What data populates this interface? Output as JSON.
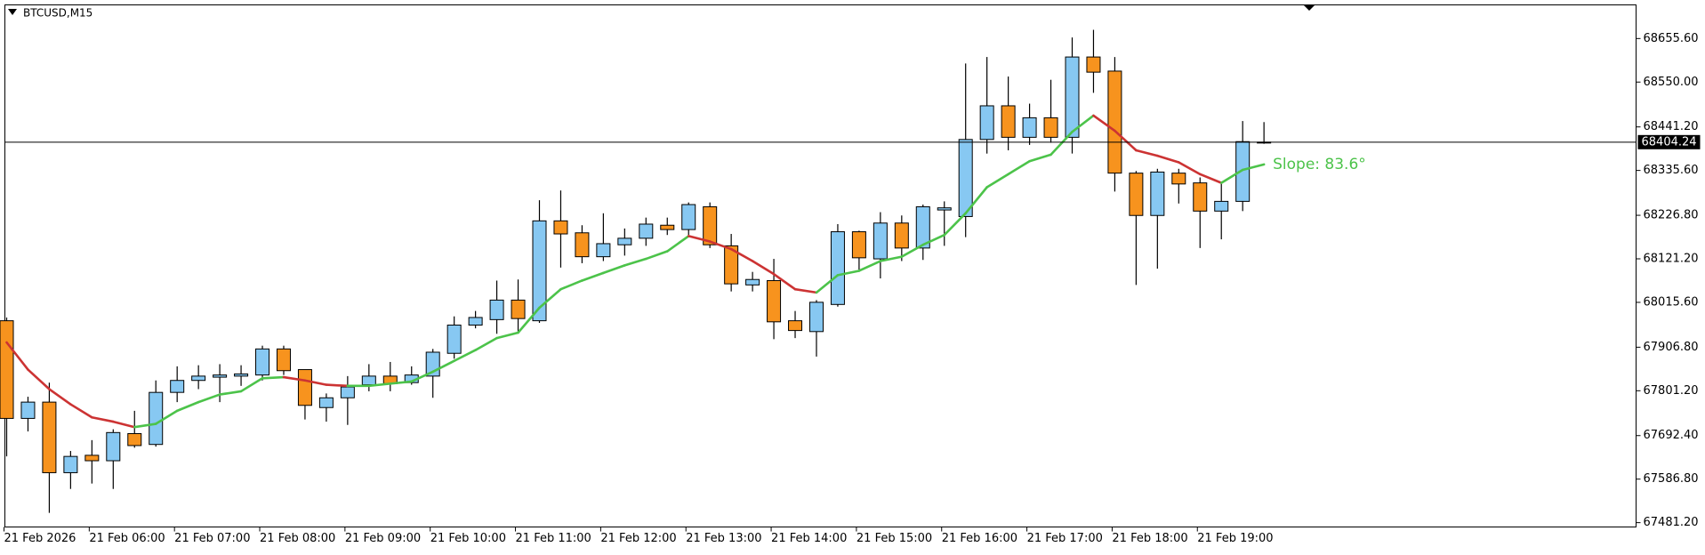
{
  "chart_data": {
    "type": "candlestick",
    "title": "BTCUSD,M15",
    "annotation": "Slope: 83.6°",
    "up_color": "#87c8f2",
    "down_color": "#f7931e",
    "categories": [
      "21 Feb 2026",
      null,
      null,
      null,
      "21 Feb 06:00",
      null,
      null,
      null,
      "21 Feb 07:00",
      null,
      null,
      null,
      "21 Feb 08:00",
      null,
      null,
      null,
      "21 Feb 09:00",
      null,
      null,
      null,
      "21 Feb 10:00",
      null,
      null,
      null,
      "21 Feb 11:00",
      null,
      null,
      null,
      "21 Feb 12:00",
      null,
      null,
      null,
      "21 Feb 13:00",
      null,
      null,
      null,
      "21 Feb 14:00",
      null,
      null,
      null,
      "21 Feb 15:00",
      null,
      null,
      null,
      "21 Feb 16:00",
      null,
      null,
      null,
      "21 Feb 17:00",
      null,
      null,
      null,
      "21 Feb 18:00",
      null,
      null,
      null,
      "21 Feb 19:00",
      null,
      null,
      null
    ],
    "open": [
      67971,
      67734.1,
      67773.6,
      67602.4,
      67644.6,
      67631.4,
      67697.2,
      67670.9,
      67797.2,
      67826.2,
      67834.1,
      67836.7,
      67839.4,
      67902.6,
      67852.5,
      67760.4,
      67784.1,
      67815.7,
      67836.7,
      67820.9,
      67836.7,
      67892,
      67960.5,
      67973.7,
      68021.1,
      67971,
      68213.3,
      68184.3,
      68126.3,
      68155.3,
      68171.1,
      68202.7,
      68192.2,
      68247.5,
      68152.7,
      68057.9,
      68068.4,
      67971,
      67944.7,
      68010.5,
      68186.9,
      68121.1,
      68208,
      68147.4,
      68239.7,
      68223.8,
      68410.7,
      68492.4,
      68416,
      68463.4,
      68416,
      68610.8,
      68576.6,
      68329.1,
      68226.4,
      68329.1,
      68305.4,
      68237,
      68260.6,
      68402.8
    ],
    "high": [
      67978.9,
      67786.7,
      67820.9,
      67655.1,
      67681.4,
      67707.7,
      67752.5,
      67826.2,
      67860.4,
      67863.1,
      67865.7,
      67863.1,
      67910.5,
      67910.5,
      67852.5,
      67794.6,
      67836.7,
      67865.7,
      67871,
      67860.4,
      67902.6,
      67981.6,
      67994.7,
      68068.4,
      68071.1,
      68263.3,
      68287,
      68202.7,
      68231.7,
      68194.8,
      68221.2,
      68221.2,
      68258,
      68258,
      68181.6,
      68089.5,
      68121.1,
      67994.7,
      68021.1,
      68205.4,
      68189.5,
      68234.4,
      68226.4,
      68252.8,
      68260.6,
      68595,
      68610.8,
      68563.4,
      68497.6,
      68555.5,
      68658.2,
      68676.7,
      68610.8,
      68334.4,
      68339.6,
      68339.6,
      68318.6,
      68308,
      68455.5,
      68452.9
    ],
    "low": [
      67641.9,
      67702.5,
      67505,
      67563,
      67576.1,
      67563,
      67663,
      67665.6,
      67773.6,
      67805.1,
      67773.6,
      67813,
      67826.2,
      67839.4,
      67731.5,
      67726.2,
      67718.3,
      67799.9,
      67799.9,
      67815.7,
      67784.1,
      67878.9,
      67952.6,
      67939.4,
      67942.1,
      67965.8,
      68100,
      68110.6,
      68115.8,
      68129,
      68152.7,
      68179,
      68179,
      68147.4,
      68042.1,
      68042.1,
      67926.3,
      67928.9,
      67884.1,
      68005.2,
      68094.8,
      68073.7,
      68115.8,
      68118.5,
      68152.7,
      68173.8,
      68376.5,
      68384.4,
      68397.6,
      68402.8,
      68376.5,
      68523.9,
      68284.3,
      68057.9,
      68097.4,
      68255.4,
      68147.4,
      68168.5,
      68237,
      68400.2
    ],
    "close": [
      67734.1,
      67773.6,
      67602.4,
      67641.9,
      67631.4,
      67699.8,
      67668.2,
      67797.2,
      67826.2,
      67836.7,
      67839.4,
      67842,
      67902.6,
      67849.9,
      67765.7,
      67784.1,
      67810.4,
      67836.7,
      67818.3,
      67839.4,
      67894.7,
      67960.5,
      67978.9,
      68021.1,
      67976.3,
      68213.3,
      68181.6,
      68126.3,
      68158,
      68171.1,
      68205.4,
      68192.2,
      68252.8,
      68155.3,
      68060.5,
      68071.1,
      67968.4,
      67947.3,
      68015.8,
      68186.9,
      68123.7,
      68208,
      68147.4,
      68247.5,
      68244.9,
      68410.7,
      68492.4,
      68416,
      68463.4,
      68416,
      68610.8,
      68574,
      68329.1,
      68226.4,
      68331.7,
      68302.8,
      68237,
      68260.6,
      68405.5,
      68404.24
    ],
    "ma": {
      "up_color": "#4cc34a",
      "down_color": "#cc3333",
      "values": [
        67918.4,
        67852.5,
        67805.1,
        67768.3,
        67736.7,
        67726.2,
        67713,
        67720.9,
        67752.5,
        67773.6,
        67792,
        67799.9,
        67831.5,
        67834.1,
        67826.2,
        67815.7,
        67813,
        67813,
        67818.3,
        67823.6,
        67847.3,
        67873.6,
        67899.9,
        67928.9,
        67942.1,
        68002.6,
        68047.4,
        68068.4,
        68086.9,
        68105.3,
        68121.1,
        68139.5,
        68176.4,
        68163.2,
        68144.8,
        68115.8,
        68084.2,
        68047.4,
        68039.5,
        68081.6,
        68092.1,
        68115.8,
        68126.3,
        68155.3,
        68179,
        68231.7,
        68294.9,
        68326.5,
        68358.1,
        68373.9,
        68429.2,
        68468.7,
        68431.8,
        68384.4,
        68371.2,
        68355.4,
        68326.5,
        68305.4,
        68337,
        68350.2
      ]
    },
    "current_price": 68404.24,
    "ylim": [
      67470.7,
      68737.2
    ],
    "yticks": [
      {
        "value": 67481.2,
        "label": "67481.20"
      },
      {
        "value": 67586.8,
        "label": "67586.80"
      },
      {
        "value": 67692.4,
        "label": "67692.40"
      },
      {
        "value": 67801.2,
        "label": "67801.20"
      },
      {
        "value": 67906.8,
        "label": "67906.80"
      },
      {
        "value": 68015.6,
        "label": "68015.60"
      },
      {
        "value": 68121.2,
        "label": "68121.20"
      },
      {
        "value": 68226.8,
        "label": "68226.80"
      },
      {
        "value": 68335.6,
        "label": "68335.60"
      },
      {
        "value": 68441.2,
        "label": "68441.20"
      },
      {
        "value": 68550,
        "label": "68550.00"
      },
      {
        "value": 68655.6,
        "label": "68655.60"
      }
    ]
  }
}
